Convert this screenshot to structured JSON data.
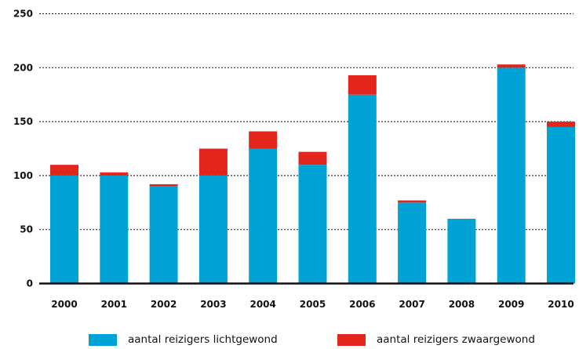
{
  "chart_data": {
    "type": "bar",
    "stacked": true,
    "title": "",
    "xlabel": "",
    "ylabel": "",
    "categories": [
      "2000",
      "2001",
      "2002",
      "2003",
      "2004",
      "2005",
      "2006",
      "2007",
      "2008",
      "2009",
      "2010"
    ],
    "series": [
      {
        "name": "aantal reizigers lichtgewond",
        "color": "#00a3d6",
        "values": [
          100,
          100,
          90,
          100,
          125,
          110,
          175,
          75,
          60,
          200,
          145
        ]
      },
      {
        "name": "aantal reizigers zwaargewond",
        "color": "#e3261b",
        "values": [
          10,
          3,
          2,
          25,
          16,
          12,
          18,
          2,
          0,
          3,
          5
        ]
      }
    ],
    "ylim": [
      0,
      250
    ],
    "yticks": [
      "0",
      "50",
      "100",
      "150",
      "200",
      "250"
    ],
    "ytick_values": [
      0,
      50,
      100,
      150,
      200,
      250
    ],
    "grid": true,
    "grid_style": "dotted",
    "legend_placement": "bottom"
  }
}
